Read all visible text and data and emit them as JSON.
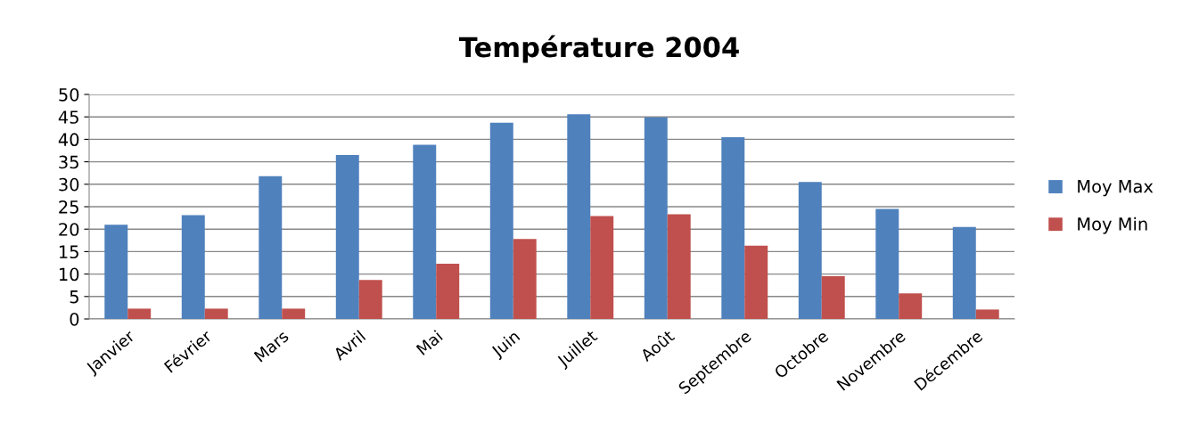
{
  "chart_data": {
    "type": "bar",
    "title": "Température 2004",
    "categories": [
      "Janvier",
      "Février",
      "Mars",
      "Avril",
      "Mai",
      "Juin",
      "Juillet",
      "Août",
      "Septembre",
      "Octobre",
      "Novembre",
      "Décembre"
    ],
    "series": [
      {
        "name": "Moy Max",
        "color": "#4f81bd",
        "values": [
          21.0,
          23.1,
          31.8,
          36.5,
          38.8,
          43.7,
          45.6,
          44.9,
          40.5,
          30.5,
          24.5,
          20.5
        ]
      },
      {
        "name": "Moy Min",
        "color": "#c0504d",
        "values": [
          2.3,
          2.3,
          2.3,
          8.7,
          12.3,
          17.8,
          22.9,
          23.3,
          16.3,
          9.5,
          5.7,
          2.1
        ]
      }
    ],
    "ylim": [
      0,
      50
    ],
    "yticks": [
      0,
      5,
      10,
      15,
      20,
      25,
      30,
      35,
      40,
      45,
      50
    ],
    "grid": "y",
    "legend": "right"
  }
}
